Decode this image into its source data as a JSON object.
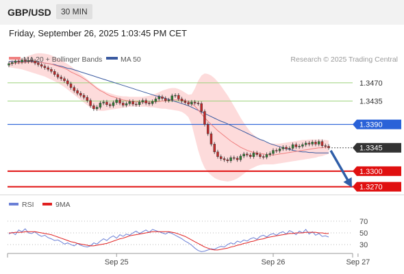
{
  "header": {
    "symbol": "GBP/USD",
    "timeframe": "30 MIN",
    "timestamp": "Friday, September 26, 2025 1:03:45 PM CET"
  },
  "colors": {
    "candle_up": "#2e7d32",
    "candle_down": "#c62828",
    "ma20": "#f08080",
    "bollinger_fill": "#fdd5d5",
    "ma50": "#3a5aa0",
    "rsi_line": "#6a7fd6",
    "rsi_ma": "#e02020",
    "resistance": "#2a62d8",
    "support": "#e01010",
    "target": "#9bd27a",
    "current_price": "#333333",
    "arrow": "#2f5ea8"
  },
  "chart_data": [
    {
      "type": "candlestick",
      "title": "GBP/USD 30 MIN",
      "legend": [
        "MA 20 + Bollinger Bands",
        "MA 50"
      ],
      "legend_position": "top-left",
      "watermark": "Research © 2025 Trading Central",
      "ylim": [
        1.3255,
        1.3545
      ],
      "x_ticks": [
        {
          "label": "Sep 25",
          "index": 33
        },
        {
          "label": "Sep 26",
          "index": 81
        },
        {
          "label": "Sep 27",
          "index": 107
        }
      ],
      "close": [
        1.3507,
        1.3509,
        1.3512,
        1.351,
        1.3514,
        1.3511,
        1.3513,
        1.3512,
        1.3508,
        1.3505,
        1.3502,
        1.3499,
        1.3496,
        1.3492,
        1.3486,
        1.3481,
        1.3478,
        1.3474,
        1.3468,
        1.3461,
        1.3455,
        1.345,
        1.3446,
        1.3442,
        1.3436,
        1.3426,
        1.342,
        1.3423,
        1.3431,
        1.3433,
        1.3428,
        1.3426,
        1.3432,
        1.3437,
        1.3431,
        1.3427,
        1.343,
        1.3434,
        1.3429,
        1.3428,
        1.3433,
        1.3436,
        1.3431,
        1.343,
        1.3434,
        1.3439,
        1.3443,
        1.344,
        1.3436,
        1.3437,
        1.3445,
        1.3446,
        1.3439,
        1.3435,
        1.3432,
        1.3429,
        1.3433,
        1.3431,
        1.343,
        1.3415,
        1.339,
        1.3372,
        1.3352,
        1.3337,
        1.3328,
        1.3324,
        1.3322,
        1.332,
        1.3326,
        1.3325,
        1.3322,
        1.3329,
        1.3333,
        1.3331,
        1.3328,
        1.3335,
        1.3332,
        1.3328,
        1.3327,
        1.3332,
        1.3334,
        1.334,
        1.3339,
        1.3343,
        1.3346,
        1.3343,
        1.3344,
        1.3351,
        1.3347,
        1.3348,
        1.3351,
        1.3354,
        1.3352,
        1.3356,
        1.3352,
        1.3357,
        1.3349,
        1.3348,
        1.3345
      ],
      "ma20": [
        1.3506,
        1.3507,
        1.3508,
        1.3508,
        1.3509,
        1.3509,
        1.351,
        1.351,
        1.3509,
        1.3509,
        1.3509,
        1.3508,
        1.3507,
        1.3506,
        1.3504,
        1.3502,
        1.35,
        1.3498,
        1.3495,
        1.3491,
        1.3488,
        1.3485,
        1.3482,
        1.3478,
        1.3474,
        1.3469,
        1.3464,
        1.3459,
        1.3455,
        1.3452,
        1.3448,
        1.3445,
        1.3443,
        1.3441,
        1.3439,
        1.3437,
        1.3436,
        1.3435,
        1.3434,
        1.3434,
        1.3433,
        1.3433,
        1.3433,
        1.3433,
        1.3433,
        1.3434,
        1.3434,
        1.3435,
        1.3435,
        1.3436,
        1.3437,
        1.3437,
        1.3437,
        1.3437,
        1.3436,
        1.3434,
        1.343,
        1.3425,
        1.3418,
        1.341,
        1.3403,
        1.3396,
        1.339,
        1.3384,
        1.3378,
        1.3373,
        1.3368,
        1.3363,
        1.3358,
        1.3354,
        1.335,
        1.3346,
        1.3343,
        1.334,
        1.3338,
        1.3336,
        1.3335,
        1.3334,
        1.3333,
        1.3332,
        1.3331,
        1.3331,
        1.3332,
        1.3333,
        1.3334,
        1.3335,
        1.3336,
        1.3337,
        1.3338,
        1.3339,
        1.334,
        1.3341,
        1.3342,
        1.3343,
        1.3344,
        1.3345,
        1.3345,
        1.3346,
        1.3346
      ],
      "ma50": [
        1.3511,
        1.3511,
        1.3511,
        1.3511,
        1.3511,
        1.3511,
        1.3511,
        1.3511,
        1.351,
        1.351,
        1.3509,
        1.3508,
        1.3507,
        1.3506,
        1.3505,
        1.3503,
        1.3502,
        1.35,
        1.3498,
        1.3497,
        1.3495,
        1.3493,
        1.3491,
        1.3489,
        1.3487,
        1.3485,
        1.3483,
        1.3481,
        1.3479,
        1.3477,
        1.3475,
        1.3473,
        1.3471,
        1.3469,
        1.3467,
        1.3465,
        1.3463,
        1.3461,
        1.3459,
        1.3457,
        1.3455,
        1.3453,
        1.3451,
        1.3449,
        1.3447,
        1.3445,
        1.3444,
        1.3442,
        1.344,
        1.3438,
        1.3436,
        1.3434,
        1.3432,
        1.343,
        1.3428,
        1.3426,
        1.3423,
        1.342,
        1.3417,
        1.3414,
        1.3411,
        1.3408,
        1.3405,
        1.3402,
        1.3399,
        1.3396,
        1.3394,
        1.3391,
        1.3388,
        1.3385,
        1.3382,
        1.3379,
        1.3376,
        1.3373,
        1.337,
        1.3367,
        1.3364,
        1.3361,
        1.3359,
        1.3356,
        1.3353,
        1.3351,
        1.3349,
        1.3347,
        1.3345,
        1.3343,
        1.3342,
        1.334,
        1.3339,
        1.3338,
        1.3337,
        1.3337,
        1.3336,
        1.3336,
        1.3335,
        1.3335,
        1.3335,
        1.3335,
        1.3335
      ],
      "bollinger_upper": [
        1.3512,
        1.3513,
        1.3514,
        1.3515,
        1.3517,
        1.3519,
        1.3522,
        1.3524,
        1.3526,
        1.3527,
        1.3527,
        1.3526,
        1.3525,
        1.3523,
        1.352,
        1.3517,
        1.3514,
        1.351,
        1.3506,
        1.3502,
        1.3497,
        1.3492,
        1.3487,
        1.3482,
        1.3477,
        1.3472,
        1.3467,
        1.3462,
        1.3458,
        1.3455,
        1.3452,
        1.345,
        1.3448,
        1.3446,
        1.3445,
        1.3444,
        1.3444,
        1.3443,
        1.3443,
        1.3443,
        1.3443,
        1.3443,
        1.3444,
        1.3445,
        1.3447,
        1.3449,
        1.3452,
        1.3455,
        1.3457,
        1.3459,
        1.346,
        1.346,
        1.3458,
        1.3455,
        1.3451,
        1.3447,
        1.3448,
        1.3459,
        1.3474,
        1.3484,
        1.3488,
        1.3487,
        1.3484,
        1.3479,
        1.3472,
        1.3464,
        1.3455,
        1.3446,
        1.3436,
        1.3425,
        1.3414,
        1.3403,
        1.3393,
        1.3384,
        1.3376,
        1.337,
        1.3365,
        1.3361,
        1.3358,
        1.3356,
        1.3354,
        1.3353,
        1.3353,
        1.3353,
        1.3354,
        1.3355,
        1.3356,
        1.3357,
        1.3358,
        1.3359,
        1.336,
        1.336,
        1.3361,
        1.3361,
        1.3361,
        1.3361,
        1.3361,
        1.336,
        1.3359
      ],
      "bollinger_lower": [
        1.35,
        1.3499,
        1.3498,
        1.3497,
        1.3496,
        1.3494,
        1.3492,
        1.349,
        1.3488,
        1.3486,
        1.3484,
        1.3482,
        1.3479,
        1.3476,
        1.3473,
        1.347,
        1.3466,
        1.3462,
        1.3457,
        1.3452,
        1.3447,
        1.3442,
        1.3437,
        1.3432,
        1.3427,
        1.3422,
        1.3419,
        1.3417,
        1.3416,
        1.3416,
        1.3417,
        1.3418,
        1.3419,
        1.342,
        1.3421,
        1.3422,
        1.3423,
        1.3424,
        1.3424,
        1.3424,
        1.3424,
        1.3424,
        1.3424,
        1.3423,
        1.3423,
        1.3422,
        1.3421,
        1.342,
        1.342,
        1.3419,
        1.3418,
        1.3417,
        1.3416,
        1.3414,
        1.341,
        1.3404,
        1.339,
        1.3365,
        1.334,
        1.332,
        1.3306,
        1.3298,
        1.3292,
        1.3287,
        1.3284,
        1.3282,
        1.3281,
        1.328,
        1.3281,
        1.3283,
        1.3286,
        1.329,
        1.3295,
        1.33,
        1.3304,
        1.3307,
        1.331,
        1.3312,
        1.3313,
        1.3313,
        1.3313,
        1.3313,
        1.3314,
        1.3315,
        1.3316,
        1.3317,
        1.3318,
        1.3319,
        1.332,
        1.3321,
        1.3322,
        1.3323,
        1.3324,
        1.3325,
        1.3326,
        1.3328,
        1.3329,
        1.3331,
        1.3333
      ],
      "levels": [
        {
          "label": "1.3470",
          "kind": "target"
        },
        {
          "label": "1.3435",
          "kind": "target"
        },
        {
          "label": "1.3390",
          "kind": "resistance"
        },
        {
          "label": "1.3345",
          "kind": "current_price"
        },
        {
          "label": "1.3300",
          "kind": "support"
        },
        {
          "label": "1.3270",
          "kind": "support"
        }
      ],
      "forecast_arrow": {
        "from": 1.3345,
        "to": 1.327
      }
    },
    {
      "type": "line",
      "legend": [
        "RSI",
        "9MA"
      ],
      "legend_position": "top-left",
      "ylim": [
        15,
        85
      ],
      "y_ticks": [
        "70",
        "50",
        "30"
      ],
      "reference_lines": [
        70,
        50,
        30
      ],
      "series": [
        {
          "name": "RSI",
          "values": [
            48,
            51,
            47,
            55,
            52,
            57,
            50,
            49,
            52,
            47,
            44,
            46,
            42,
            40,
            37,
            38,
            35,
            31,
            33,
            30,
            28,
            32,
            29,
            27,
            26,
            28,
            33,
            31,
            36,
            40,
            37,
            42,
            45,
            41,
            47,
            44,
            48,
            46,
            50,
            53,
            49,
            52,
            55,
            51,
            56,
            54,
            52,
            50,
            48,
            51,
            49,
            46,
            43,
            40,
            36,
            33,
            29,
            24,
            20,
            18,
            19,
            21,
            23,
            22,
            25,
            27,
            26,
            30,
            33,
            31,
            36,
            34,
            38,
            36,
            40,
            42,
            39,
            44,
            46,
            43,
            47,
            49,
            46,
            50,
            52,
            48,
            54,
            51,
            47,
            53,
            50,
            56,
            48,
            52,
            46,
            49,
            44,
            45,
            43
          ]
        },
        {
          "name": "9MA",
          "values": [
            50,
            50,
            51,
            51,
            51,
            52,
            52,
            52,
            52,
            51,
            50,
            49,
            48,
            47,
            45,
            43,
            41,
            39,
            37,
            35,
            34,
            32,
            31,
            30,
            29,
            28,
            28,
            29,
            30,
            31,
            32,
            34,
            36,
            38,
            40,
            41,
            43,
            45,
            46,
            47,
            48,
            49,
            50,
            51,
            52,
            52,
            52,
            52,
            52,
            52,
            51,
            50,
            48,
            46,
            44,
            41,
            38,
            35,
            32,
            29,
            26,
            24,
            22,
            21,
            21,
            22,
            23,
            24,
            26,
            27,
            29,
            30,
            32,
            33,
            35,
            36,
            38,
            39,
            40,
            42,
            43,
            44,
            45,
            46,
            47,
            48,
            49,
            49,
            50,
            50,
            50,
            51,
            51,
            51,
            51,
            50,
            50,
            49,
            49
          ]
        }
      ]
    }
  ]
}
